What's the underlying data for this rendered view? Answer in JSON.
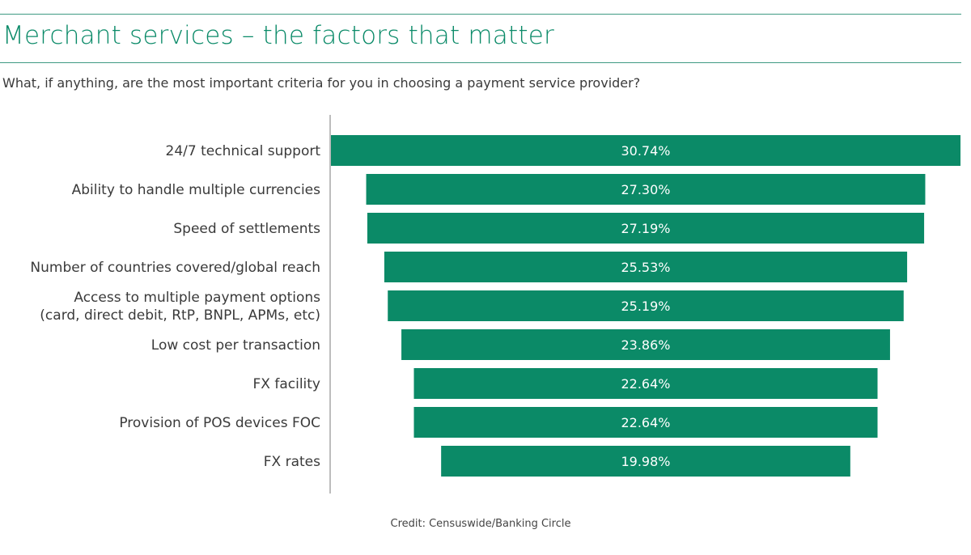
{
  "header": {
    "title": "Merchant services – the factors that matter",
    "subtitle": "What, if anything, are the most important criteria for you in choosing a payment service provider?"
  },
  "colors": {
    "accent": "#0a8a68",
    "bar": "#0b8a67",
    "rule": "#3f9a83",
    "axis": "#bdbdbd"
  },
  "chart_data": {
    "type": "bar",
    "orientation": "horizontal",
    "alignment": "centered",
    "categories": [
      "24/7 technical support",
      "Ability to handle multiple currencies",
      "Speed of settlements",
      "Number of countries covered/global reach",
      "Access to multiple payment options\n(card, direct debit, RtP, BNPL, APMs, etc)",
      "Low cost per transaction",
      "FX facility",
      "Provision of POS devices FOC",
      "FX rates"
    ],
    "values": [
      30.74,
      27.3,
      27.19,
      25.53,
      25.19,
      23.86,
      22.64,
      22.64,
      19.98
    ],
    "data_labels": [
      "30.74%",
      "27.30%",
      "27.19%",
      "25.53%",
      "25.19%",
      "23.86%",
      "22.64%",
      "22.64%",
      "19.98%"
    ],
    "unit": "%",
    "grid": false
  },
  "footer": {
    "credit": "Credit: Censuswide/Banking Circle"
  }
}
